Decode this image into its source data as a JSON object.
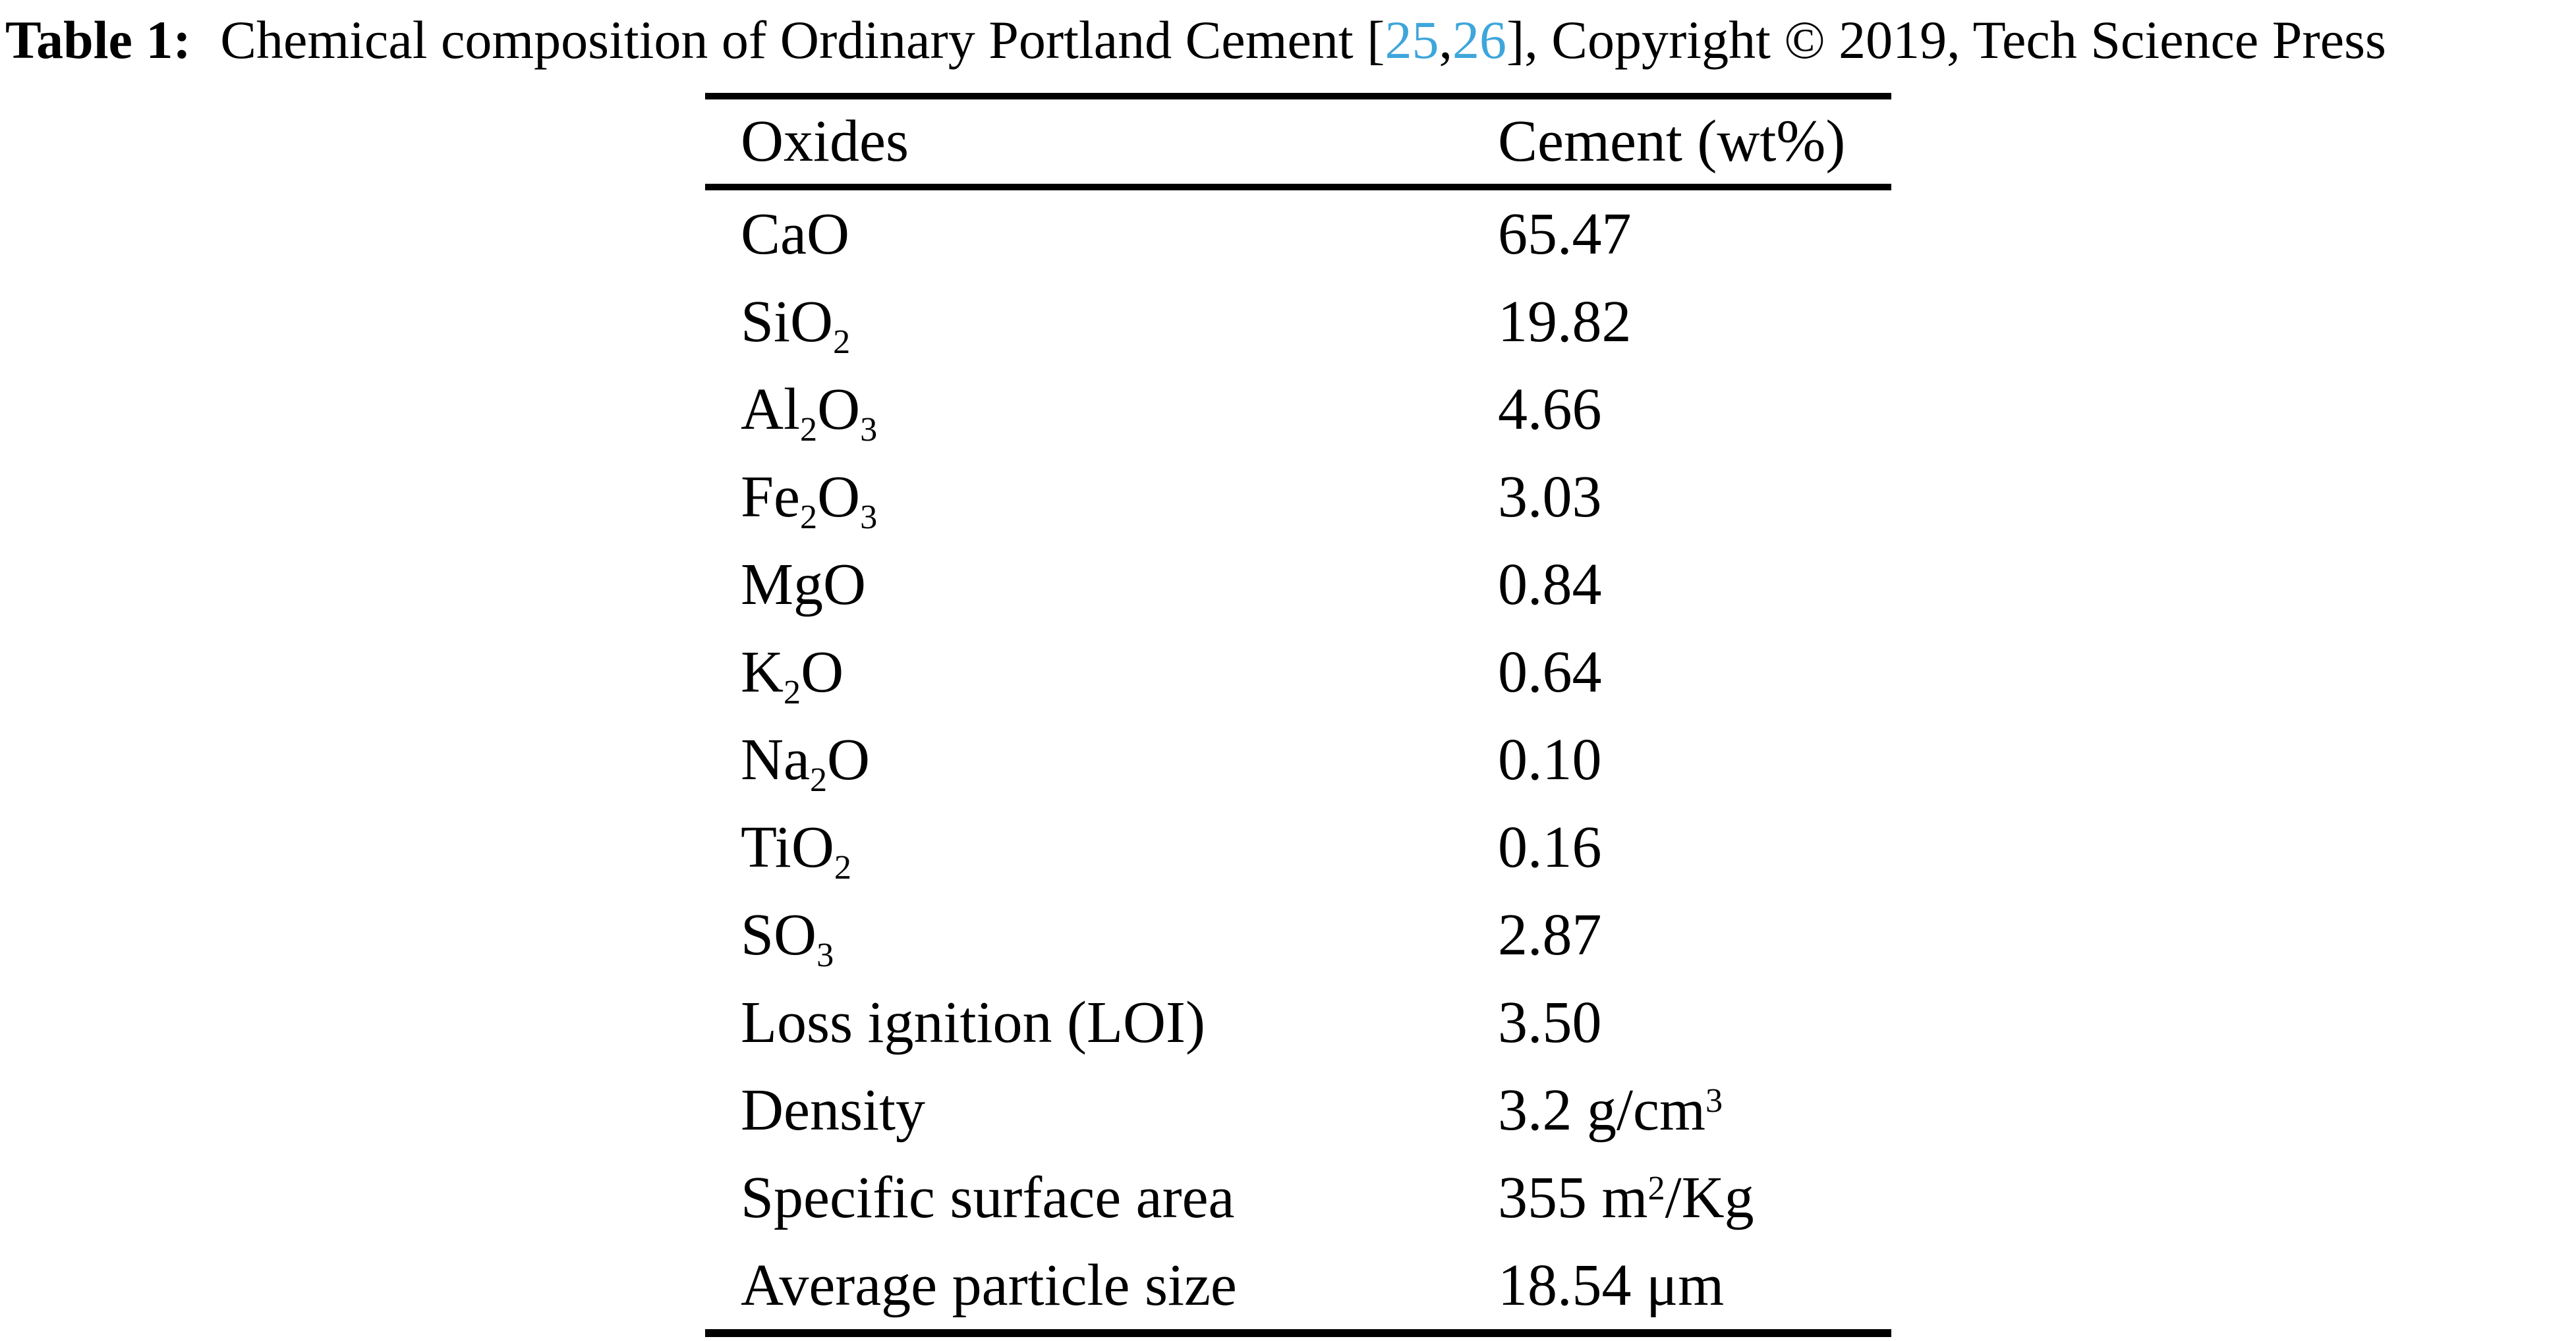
{
  "page": {
    "background": "#ffffff",
    "text_color": "#000000",
    "link_color": "#3ea6db",
    "rule_color": "#000000"
  },
  "caption": {
    "segments": [
      {
        "t": "Table 1:",
        "s": "bold"
      },
      {
        "t": " Chemical composition of Ordinary Portland Cement [",
        "s": "plain"
      },
      {
        "t": "25",
        "s": "link"
      },
      {
        "t": ",",
        "s": "plain"
      },
      {
        "t": "26",
        "s": "link"
      },
      {
        "t": "], Copyright © 2019, Tech Science Press",
        "s": "plain"
      }
    ]
  },
  "table": {
    "columns": [
      "Oxides",
      "Cement (wt%)"
    ],
    "rows": [
      {
        "oxide": [
          {
            "t": "CaO"
          }
        ],
        "value": [
          {
            "t": "65.47"
          }
        ]
      },
      {
        "oxide": [
          {
            "t": "SiO"
          },
          {
            "t": "2",
            "s": "sub"
          }
        ],
        "value": [
          {
            "t": "19.82"
          }
        ]
      },
      {
        "oxide": [
          {
            "t": "Al"
          },
          {
            "t": "2",
            "s": "sub"
          },
          {
            "t": "O"
          },
          {
            "t": "3",
            "s": "sub"
          }
        ],
        "value": [
          {
            "t": "4.66"
          }
        ]
      },
      {
        "oxide": [
          {
            "t": "Fe"
          },
          {
            "t": "2",
            "s": "sub"
          },
          {
            "t": "O"
          },
          {
            "t": "3",
            "s": "sub"
          }
        ],
        "value": [
          {
            "t": "3.03"
          }
        ]
      },
      {
        "oxide": [
          {
            "t": "MgO"
          }
        ],
        "value": [
          {
            "t": "0.84"
          }
        ]
      },
      {
        "oxide": [
          {
            "t": "K"
          },
          {
            "t": "2",
            "s": "sub"
          },
          {
            "t": "O"
          }
        ],
        "value": [
          {
            "t": "0.64"
          }
        ]
      },
      {
        "oxide": [
          {
            "t": "Na"
          },
          {
            "t": "2",
            "s": "sub"
          },
          {
            "t": "O"
          }
        ],
        "value": [
          {
            "t": "0.10"
          }
        ]
      },
      {
        "oxide": [
          {
            "t": "TiO"
          },
          {
            "t": "2",
            "s": "sub"
          }
        ],
        "value": [
          {
            "t": "0.16"
          }
        ]
      },
      {
        "oxide": [
          {
            "t": "SO"
          },
          {
            "t": "3",
            "s": "sub"
          }
        ],
        "value": [
          {
            "t": "2.87"
          }
        ]
      },
      {
        "oxide": [
          {
            "t": "Loss ignition (LOI)"
          }
        ],
        "value": [
          {
            "t": "3.50"
          }
        ]
      },
      {
        "oxide": [
          {
            "t": "Density"
          }
        ],
        "value": [
          {
            "t": "3.2 g/cm"
          },
          {
            "t": "3",
            "s": "sup"
          }
        ]
      },
      {
        "oxide": [
          {
            "t": "Specific surface area"
          }
        ],
        "value": [
          {
            "t": "355 m"
          },
          {
            "t": "2",
            "s": "sup"
          },
          {
            "t": "/Kg"
          }
        ]
      },
      {
        "oxide": [
          {
            "t": "Average particle size"
          }
        ],
        "value": [
          {
            "t": "18.54 μm"
          }
        ]
      }
    ]
  }
}
